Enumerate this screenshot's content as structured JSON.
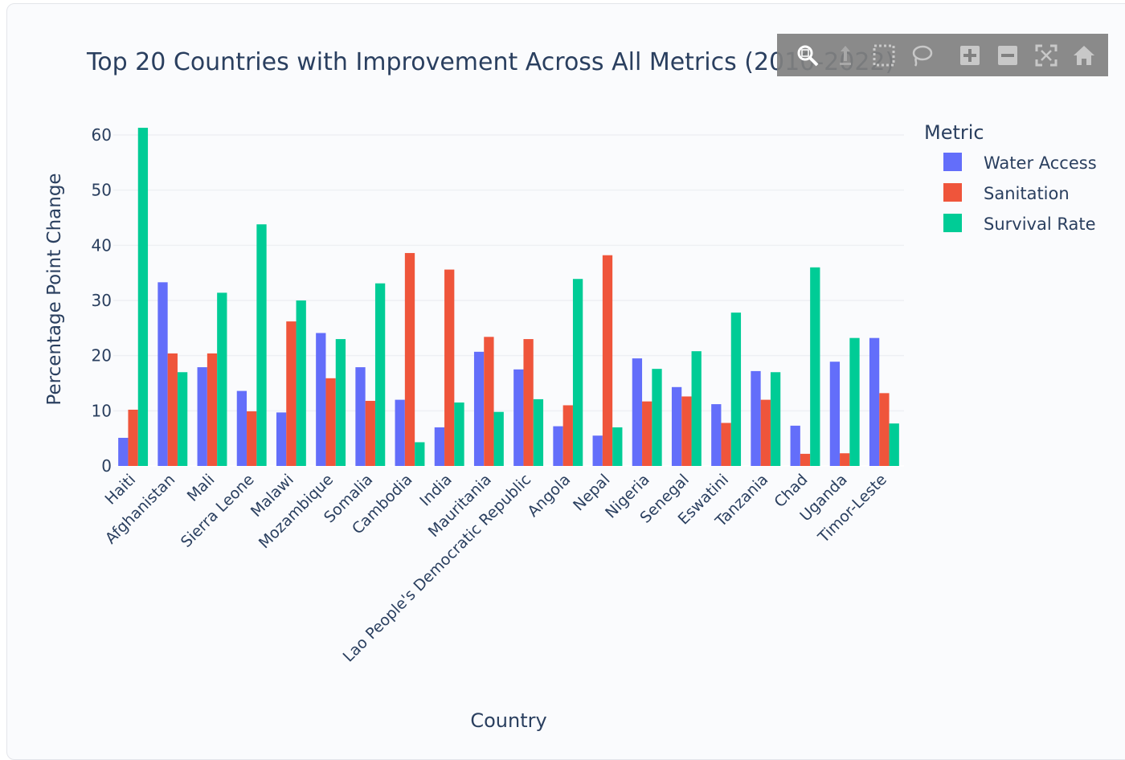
{
  "chart_data": {
    "type": "bar",
    "title": "Top 20 Countries with Improvement Across All Metrics (2010-2022)",
    "xlabel": "Country",
    "ylabel": "Percentage Point Change",
    "ylim": [
      0,
      63
    ],
    "yticks": [
      0,
      10,
      20,
      30,
      40,
      50,
      60
    ],
    "grid": true,
    "legend": {
      "title": "Metric",
      "placement": "top-right"
    },
    "categories": [
      "Haiti",
      "Afghanistan",
      "Mali",
      "Sierra Leone",
      "Malawi",
      "Mozambique",
      "Somalia",
      "Cambodia",
      "India",
      "Mauritania",
      "Lao People's Democratic Republic",
      "Angola",
      "Nepal",
      "Nigeria",
      "Senegal",
      "Eswatini",
      "Tanzania",
      "Chad",
      "Uganda",
      "Timor-Leste"
    ],
    "series": [
      {
        "name": "Water Access",
        "color": "#636efa",
        "values": [
          5.1,
          33.3,
          17.9,
          13.6,
          9.7,
          24.1,
          17.9,
          12.0,
          7.0,
          20.7,
          17.5,
          7.2,
          5.5,
          19.5,
          14.3,
          11.2,
          17.2,
          7.3,
          18.9,
          23.2
        ]
      },
      {
        "name": "Sanitation",
        "color": "#ef553b",
        "values": [
          10.2,
          20.4,
          20.4,
          9.9,
          26.2,
          15.9,
          11.8,
          38.6,
          35.6,
          23.4,
          23.0,
          11.0,
          38.2,
          11.7,
          12.6,
          7.8,
          12.0,
          2.2,
          2.3,
          13.2
        ]
      },
      {
        "name": "Survival Rate",
        "color": "#00cc96",
        "values": [
          61.3,
          17.0,
          31.4,
          43.8,
          30.0,
          23.0,
          33.1,
          4.3,
          11.5,
          9.8,
          12.1,
          33.9,
          7.0,
          17.6,
          20.8,
          27.8,
          17.0,
          36.0,
          23.2,
          7.7
        ]
      }
    ]
  },
  "modebar": {
    "icons": [
      "zoom-icon",
      "pan-icon",
      "box-select-icon",
      "lasso-select-icon",
      "zoom-in-icon",
      "zoom-out-icon",
      "autoscale-icon",
      "reset-axes-icon"
    ]
  }
}
